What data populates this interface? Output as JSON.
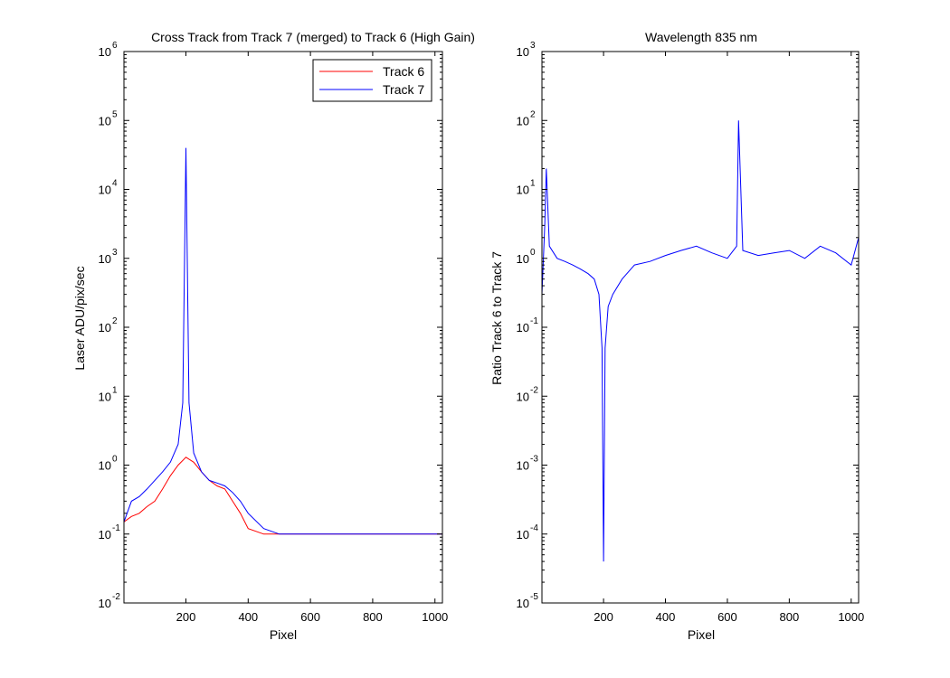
{
  "colors": {
    "track6": "#ff0000",
    "track7": "#0000ff",
    "axes": "#000000"
  },
  "chart_data": [
    {
      "type": "line",
      "title": "Cross Track from Track 7 (merged) to Track 6 (High Gain)",
      "xlabel": "Pixel",
      "ylabel": "Laser ADU/pix/sec",
      "xlim": [
        1,
        1024
      ],
      "ylim": [
        0.01,
        1000000
      ],
      "yscale": "log",
      "xticks": [
        200,
        400,
        600,
        800,
        1000
      ],
      "xtick_labels": [
        "200",
        "400",
        "600",
        "800",
        "1000"
      ],
      "yticks": [
        {
          "base": "10",
          "exp": "-2"
        },
        {
          "base": "10",
          "exp": "-1"
        },
        {
          "base": "10",
          "exp": "0"
        },
        {
          "base": "10",
          "exp": "1"
        },
        {
          "base": "10",
          "exp": "2"
        },
        {
          "base": "10",
          "exp": "3"
        },
        {
          "base": "10",
          "exp": "4"
        },
        {
          "base": "10",
          "exp": "5"
        },
        {
          "base": "10",
          "exp": "6"
        }
      ],
      "legend_position": "top-right",
      "legend": [
        "Track 6",
        "Track 7"
      ],
      "series": [
        {
          "name": "Track 6",
          "color": "#ff0000",
          "x": [
            1,
            25,
            50,
            75,
            100,
            125,
            150,
            175,
            200,
            225,
            250,
            275,
            300,
            325,
            350,
            375,
            400,
            450,
            500,
            600,
            700,
            800,
            900,
            1024
          ],
          "y": [
            0.15,
            0.18,
            0.2,
            0.25,
            0.3,
            0.45,
            0.7,
            1.0,
            1.3,
            1.1,
            0.8,
            0.6,
            0.5,
            0.45,
            0.3,
            0.2,
            0.12,
            0.1,
            0.1,
            0.1,
            0.1,
            0.1,
            0.1,
            0.1
          ]
        },
        {
          "name": "Track 7",
          "color": "#0000ff",
          "x": [
            1,
            25,
            50,
            75,
            100,
            125,
            150,
            175,
            190,
            200,
            210,
            225,
            250,
            275,
            300,
            325,
            350,
            375,
            400,
            450,
            500,
            600,
            700,
            800,
            900,
            1024
          ],
          "y": [
            0.15,
            0.3,
            0.35,
            0.45,
            0.6,
            0.8,
            1.1,
            2.0,
            8.0,
            40000,
            8.0,
            1.5,
            0.8,
            0.6,
            0.55,
            0.5,
            0.4,
            0.3,
            0.2,
            0.12,
            0.1,
            0.1,
            0.1,
            0.1,
            0.1,
            0.1
          ]
        }
      ]
    },
    {
      "type": "line",
      "title": "Wavelength 835 nm",
      "xlabel": "Pixel",
      "ylabel": "Ratio Track 6 to Track 7",
      "xlim": [
        1,
        1024
      ],
      "ylim": [
        1e-05,
        1000
      ],
      "yscale": "log",
      "xticks": [
        200,
        400,
        600,
        800,
        1000
      ],
      "xtick_labels": [
        "200",
        "400",
        "600",
        "800",
        "1000"
      ],
      "yticks": [
        {
          "base": "10",
          "exp": "-5"
        },
        {
          "base": "10",
          "exp": "-4"
        },
        {
          "base": "10",
          "exp": "-3"
        },
        {
          "base": "10",
          "exp": "-2"
        },
        {
          "base": "10",
          "exp": "-1"
        },
        {
          "base": "10",
          "exp": "0"
        },
        {
          "base": "10",
          "exp": "1"
        },
        {
          "base": "10",
          "exp": "2"
        },
        {
          "base": "10",
          "exp": "3"
        }
      ],
      "series": [
        {
          "color": "#0000ff",
          "x": [
            1,
            10,
            15,
            25,
            50,
            75,
            100,
            125,
            150,
            170,
            185,
            195,
            200,
            205,
            215,
            230,
            260,
            300,
            350,
            400,
            450,
            500,
            550,
            600,
            630,
            636,
            650,
            700,
            750,
            800,
            850,
            900,
            950,
            1000,
            1024
          ],
          "y": [
            0.3,
            3.0,
            20,
            1.5,
            1.0,
            0.9,
            0.8,
            0.7,
            0.6,
            0.5,
            0.3,
            0.05,
            4e-05,
            0.05,
            0.2,
            0.3,
            0.5,
            0.8,
            0.9,
            1.1,
            1.3,
            1.5,
            1.2,
            1.0,
            1.5,
            100,
            1.3,
            1.1,
            1.2,
            1.3,
            1.0,
            1.5,
            1.2,
            0.8,
            2.0
          ]
        }
      ]
    }
  ]
}
